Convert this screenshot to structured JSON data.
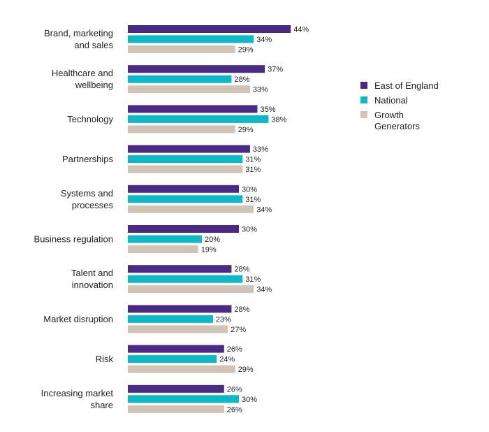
{
  "chart_data": {
    "type": "bar",
    "orientation": "horizontal",
    "categories": [
      [
        "Brand, marketing",
        "and sales"
      ],
      [
        "Healthcare and",
        "wellbeing"
      ],
      [
        "Technology"
      ],
      [
        "Partnerships"
      ],
      [
        "Systems and",
        "processes"
      ],
      [
        "Business regulation"
      ],
      [
        "Talent and",
        "innovation"
      ],
      [
        "Market disruption"
      ],
      [
        "Risk"
      ],
      [
        "Increasing market",
        "share"
      ]
    ],
    "series": [
      {
        "name": "East of England",
        "color": "#4b2a85",
        "values": [
          44,
          37,
          35,
          33,
          30,
          30,
          28,
          28,
          26,
          26
        ],
        "labels": [
          "44%",
          "37%",
          "35%",
          "33%",
          "30%",
          "30%",
          "28%",
          "28%",
          "26%",
          "26%"
        ]
      },
      {
        "name": "National",
        "color": "#0fb8c9",
        "values": [
          34,
          28,
          38,
          31,
          31,
          20,
          31,
          23,
          24,
          30
        ],
        "labels": [
          "34%",
          "28%",
          "38%",
          "31%",
          "31%",
          "20%",
          "31%",
          "23%",
          "24%",
          "30%"
        ]
      },
      {
        "name": "Growth Generators",
        "color": "#d1c3b6",
        "values": [
          29,
          33,
          29,
          31,
          34,
          19,
          34,
          27,
          29,
          26
        ],
        "labels": [
          "29%",
          "33%",
          "29%",
          "31%",
          "34%",
          "19%",
          "34%",
          "27%",
          "29%",
          "26%"
        ]
      }
    ],
    "legend": {
      "position": "right",
      "items": [
        [
          "East of England"
        ],
        [
          "National"
        ],
        [
          "Growth",
          "Generators"
        ]
      ]
    },
    "grid": false,
    "xlim": [
      0,
      50
    ]
  }
}
